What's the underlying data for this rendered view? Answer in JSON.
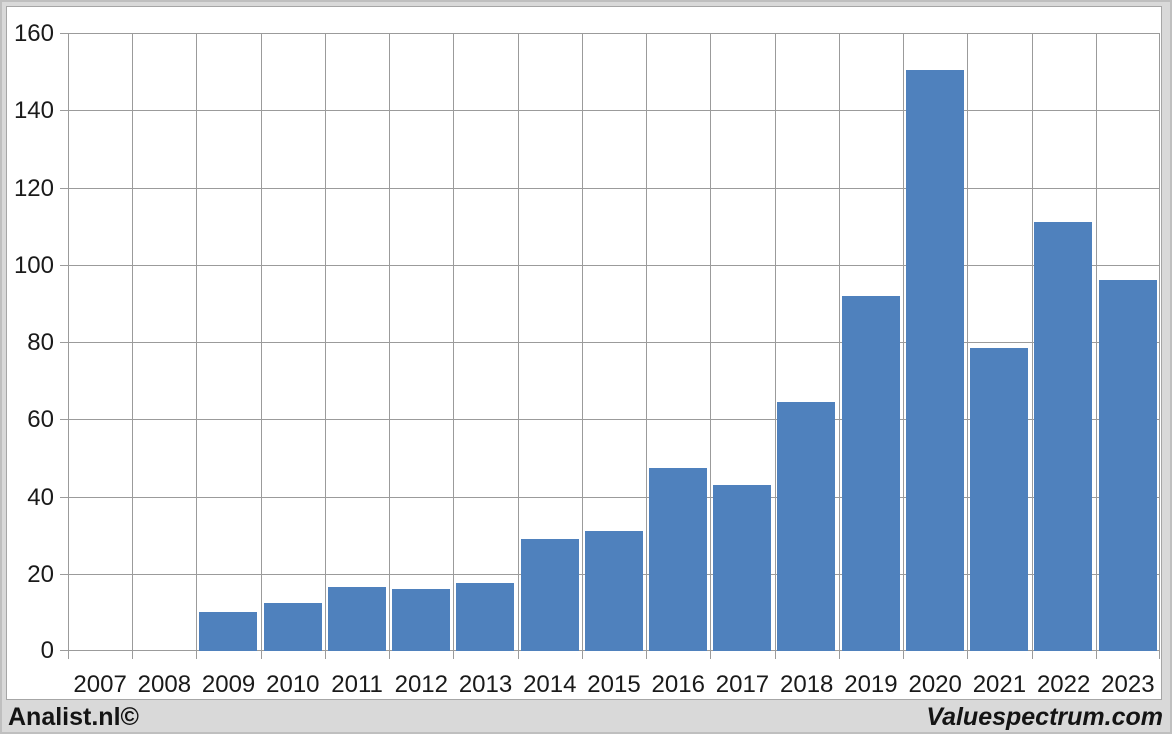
{
  "branding": {
    "left": "Analist.nl©",
    "right": "Valuespectrum.com"
  },
  "colors": {
    "bar": "#4f81bd",
    "outer_background": "#d9d9d9",
    "plot_background": "#ffffff",
    "gridline": "#9b9b9b",
    "chart_border": "#a6a6a6",
    "text": "#1a1a1a"
  },
  "chart_data": {
    "type": "bar",
    "categories": [
      "2007",
      "2008",
      "2009",
      "2010",
      "2011",
      "2012",
      "2013",
      "2014",
      "2015",
      "2016",
      "2017",
      "2018",
      "2019",
      "2020",
      "2021",
      "2022",
      "2023"
    ],
    "values": [
      0,
      0,
      10,
      12.5,
      16.5,
      16,
      17.5,
      29,
      31,
      47.5,
      43,
      64.5,
      92,
      150.5,
      78.5,
      111,
      96
    ],
    "ylim": [
      0,
      160
    ],
    "yticks": [
      0,
      20,
      40,
      60,
      80,
      100,
      120,
      140,
      160
    ],
    "grid": true,
    "legend": false,
    "xlabel": "",
    "ylabel": ""
  }
}
